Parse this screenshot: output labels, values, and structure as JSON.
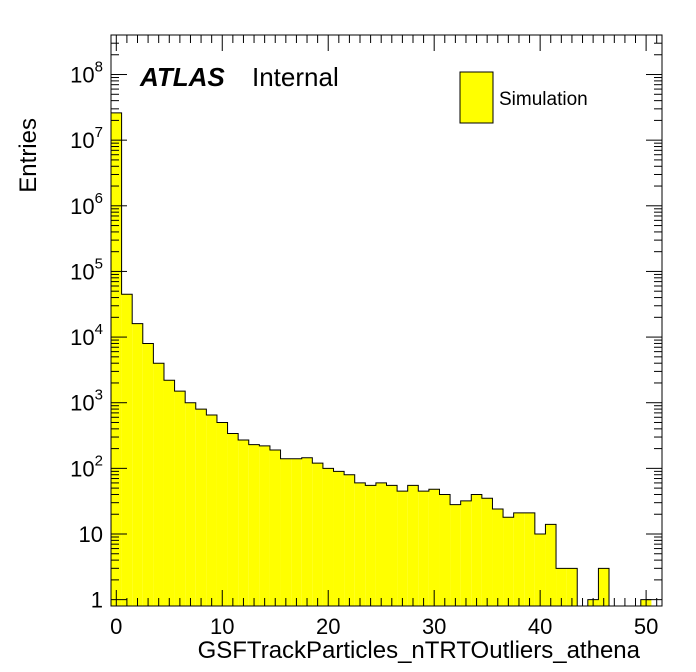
{
  "chart_data": {
    "type": "bar",
    "xlabel": "GSFTrackParticles_nTRTOutliers_athena",
    "ylabel": "Entries",
    "xlim": [
      -0.5,
      51.5
    ],
    "ylim": [
      0.8,
      400000000
    ],
    "yscale": "log",
    "grid": false,
    "legend_position": "top-right",
    "annotation": {
      "atlas": "ATLAS",
      "label": "Internal"
    },
    "series": [
      {
        "name": "Simulation",
        "color": "#ffff00",
        "bin_width": 1,
        "x": [
          0,
          1,
          2,
          3,
          4,
          5,
          6,
          7,
          8,
          9,
          10,
          11,
          12,
          13,
          14,
          15,
          16,
          17,
          18,
          19,
          20,
          21,
          22,
          23,
          24,
          25,
          26,
          27,
          28,
          29,
          30,
          31,
          32,
          33,
          34,
          35,
          36,
          37,
          38,
          39,
          40,
          41,
          42,
          43,
          44,
          45,
          46,
          47,
          48,
          49,
          50
        ],
        "values": [
          26000000,
          45000,
          16000,
          8000,
          4000,
          2200,
          1500,
          1000,
          800,
          650,
          500,
          340,
          270,
          230,
          220,
          190,
          140,
          140,
          145,
          120,
          100,
          90,
          80,
          60,
          55,
          60,
          55,
          45,
          55,
          45,
          48,
          40,
          28,
          32,
          40,
          35,
          24,
          18,
          21,
          21,
          10,
          14,
          3,
          3,
          0,
          1,
          3,
          0,
          0,
          0,
          1
        ]
      }
    ],
    "x_ticks": [
      "0",
      "10",
      "20",
      "30",
      "40",
      "50"
    ],
    "y_ticks": [
      {
        "value": 1,
        "base": "1",
        "exp": ""
      },
      {
        "value": 10,
        "base": "10",
        "exp": ""
      },
      {
        "value": 100,
        "base": "10",
        "exp": "2"
      },
      {
        "value": 1000,
        "base": "10",
        "exp": "3"
      },
      {
        "value": 10000,
        "base": "10",
        "exp": "4"
      },
      {
        "value": 100000,
        "base": "10",
        "exp": "5"
      },
      {
        "value": 1000000,
        "base": "10",
        "exp": "6"
      },
      {
        "value": 10000000,
        "base": "10",
        "exp": "7"
      },
      {
        "value": 100000000,
        "base": "10",
        "exp": "8"
      }
    ]
  }
}
